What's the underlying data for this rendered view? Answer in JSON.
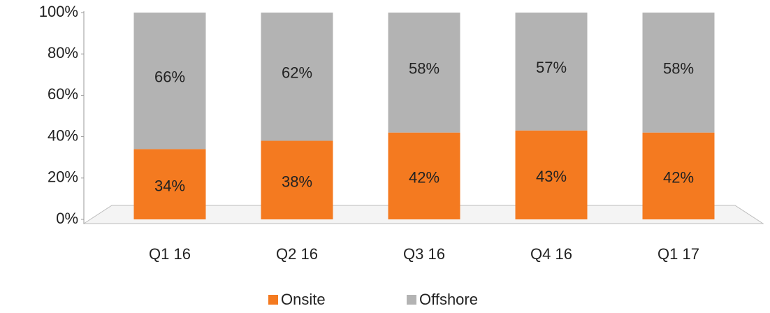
{
  "chart_data": {
    "type": "stacked-bar",
    "categories": [
      "Q1 16",
      "Q2 16",
      "Q3 16",
      "Q4 16",
      "Q1 17"
    ],
    "series": [
      {
        "name": "Onsite",
        "color": "#f47a20",
        "values": [
          34,
          38,
          42,
          43,
          42
        ],
        "value_labels": [
          "34%",
          "38%",
          "42%",
          "43%",
          "42%"
        ]
      },
      {
        "name": "Offshore",
        "color": "#b3b3b3",
        "values": [
          66,
          62,
          58,
          57,
          58
        ],
        "value_labels": [
          "66%",
          "62%",
          "58%",
          "57%",
          "58%"
        ]
      }
    ],
    "ylim": [
      0,
      100
    ],
    "yticks": [
      {
        "value": 0,
        "label": "0%"
      },
      {
        "value": 20,
        "label": "20%"
      },
      {
        "value": 40,
        "label": "40%"
      },
      {
        "value": 60,
        "label": "60%"
      },
      {
        "value": 80,
        "label": "80%"
      },
      {
        "value": 100,
        "label": "100%"
      }
    ],
    "grid": false,
    "legend": "bottom"
  }
}
